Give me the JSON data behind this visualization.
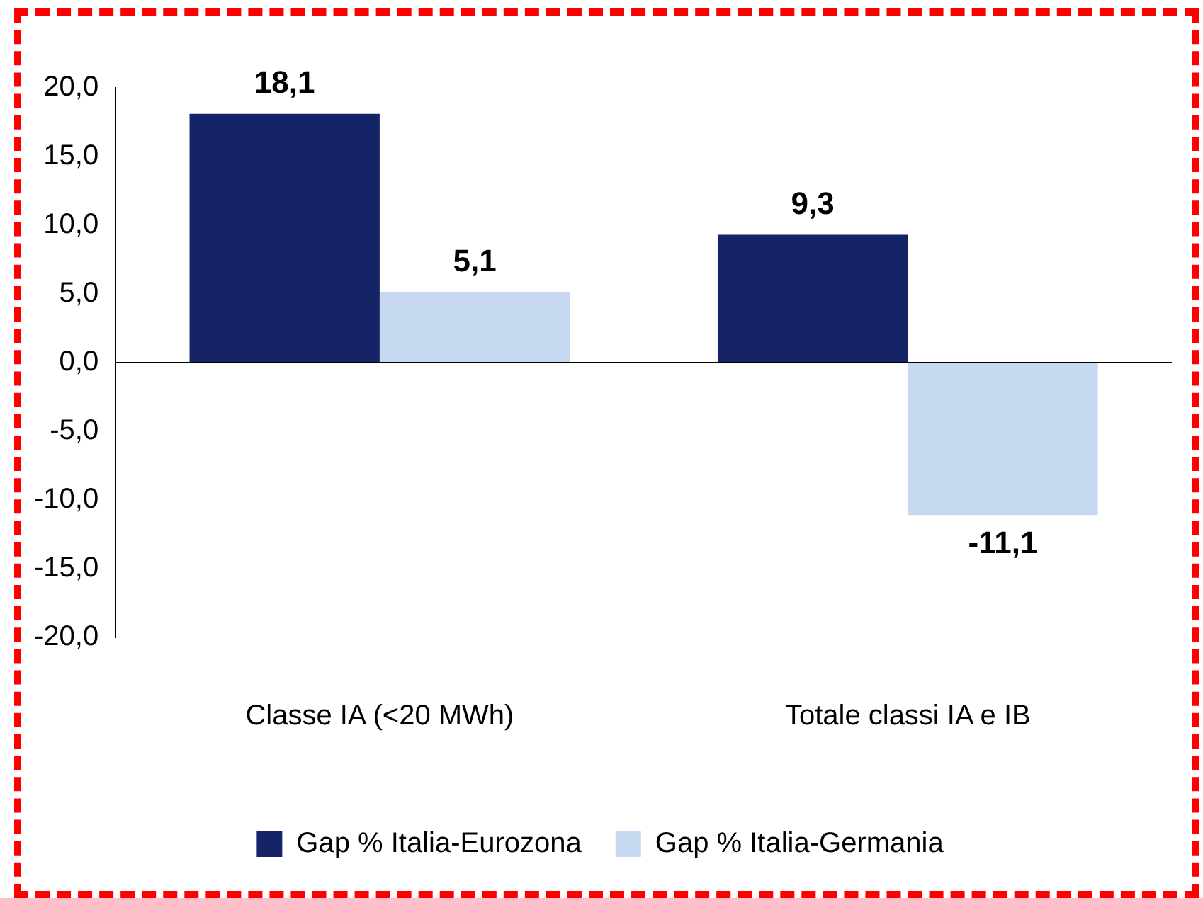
{
  "chart_data": {
    "type": "bar",
    "categories": [
      "Classe IA (<20 MWh)",
      "Totale classi IA e IB"
    ],
    "series": [
      {
        "name": "Gap % Italia-Eurozona",
        "color": "#142466",
        "values": [
          18.1,
          9.3
        ],
        "value_labels": [
          "18,1",
          "9,3"
        ]
      },
      {
        "name": "Gap % Italia-Germania",
        "color": "#c6d9f0",
        "values": [
          5.1,
          -11.1
        ],
        "value_labels": [
          "5,1",
          "-11,1"
        ]
      }
    ],
    "ylim": [
      -20,
      20
    ],
    "yticks": [
      {
        "value": -20,
        "label": "-20,0"
      },
      {
        "value": -15,
        "label": "-15,0"
      },
      {
        "value": -10,
        "label": "-10,0"
      },
      {
        "value": -5,
        "label": "-5,0"
      },
      {
        "value": 0,
        "label": "0,0"
      },
      {
        "value": 5,
        "label": "5,0"
      },
      {
        "value": 10,
        "label": "10,0"
      },
      {
        "value": 15,
        "label": "15,0"
      },
      {
        "value": 20,
        "label": "20,0"
      }
    ],
    "ref_lines": [
      {
        "axis": "y",
        "value": 0,
        "color": "#000000"
      }
    ],
    "grid": false,
    "legend": "bottom"
  }
}
